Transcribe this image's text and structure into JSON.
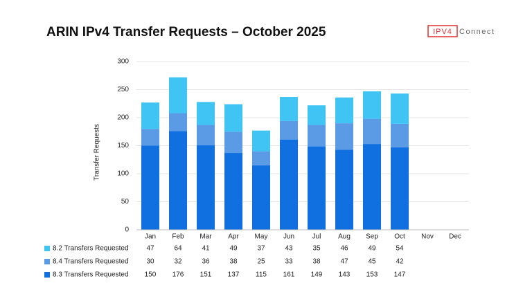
{
  "chart_data": {
    "type": "stacked_bar",
    "title": "ARIN IPv4 Transfer Requests – October 2025",
    "logo": {
      "mark": "IPV4",
      "text": "Connect"
    },
    "y_label": "Transfer Requests",
    "categories": [
      "Jan",
      "Feb",
      "Mar",
      "Apr",
      "May",
      "Jun",
      "Jul",
      "Aug",
      "Sep",
      "Oct",
      "Nov",
      "Dec"
    ],
    "series": [
      {
        "name": "8.2 Transfers Requested",
        "color": "#40c4f4",
        "values": [
          47,
          64,
          41,
          49,
          37,
          43,
          35,
          46,
          49,
          54,
          null,
          null
        ]
      },
      {
        "name": "8.4 Transfers Requested",
        "color": "#5b9be6",
        "values": [
          30,
          32,
          36,
          38,
          25,
          33,
          38,
          47,
          45,
          42,
          null,
          null
        ]
      },
      {
        "name": "8.3 Transfers Requested",
        "color": "#1170e0",
        "values": [
          150,
          176,
          151,
          137,
          115,
          161,
          149,
          143,
          153,
          147,
          null,
          null
        ]
      }
    ],
    "ylim": [
      0,
      300
    ],
    "yticks": [
      0,
      50,
      100,
      150,
      200,
      250,
      300
    ],
    "grid": true
  }
}
